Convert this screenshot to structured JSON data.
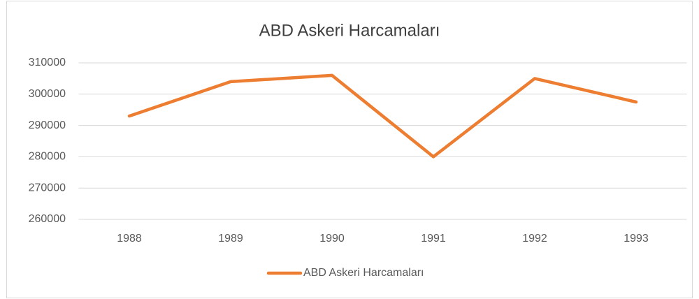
{
  "chart_data": {
    "type": "line",
    "title": "ABD Askeri Harcamaları",
    "categories": [
      "1988",
      "1989",
      "1990",
      "1991",
      "1992",
      "1993"
    ],
    "series": [
      {
        "name": "ABD Askeri Harcamaları",
        "color": "#ed7d31",
        "values": [
          293000,
          304000,
          306000,
          280000,
          305000,
          297500
        ]
      }
    ],
    "ylim": [
      260000,
      310000
    ],
    "yticks": [
      260000,
      270000,
      280000,
      290000,
      300000,
      310000
    ],
    "grid": true,
    "legend": "bottom"
  }
}
